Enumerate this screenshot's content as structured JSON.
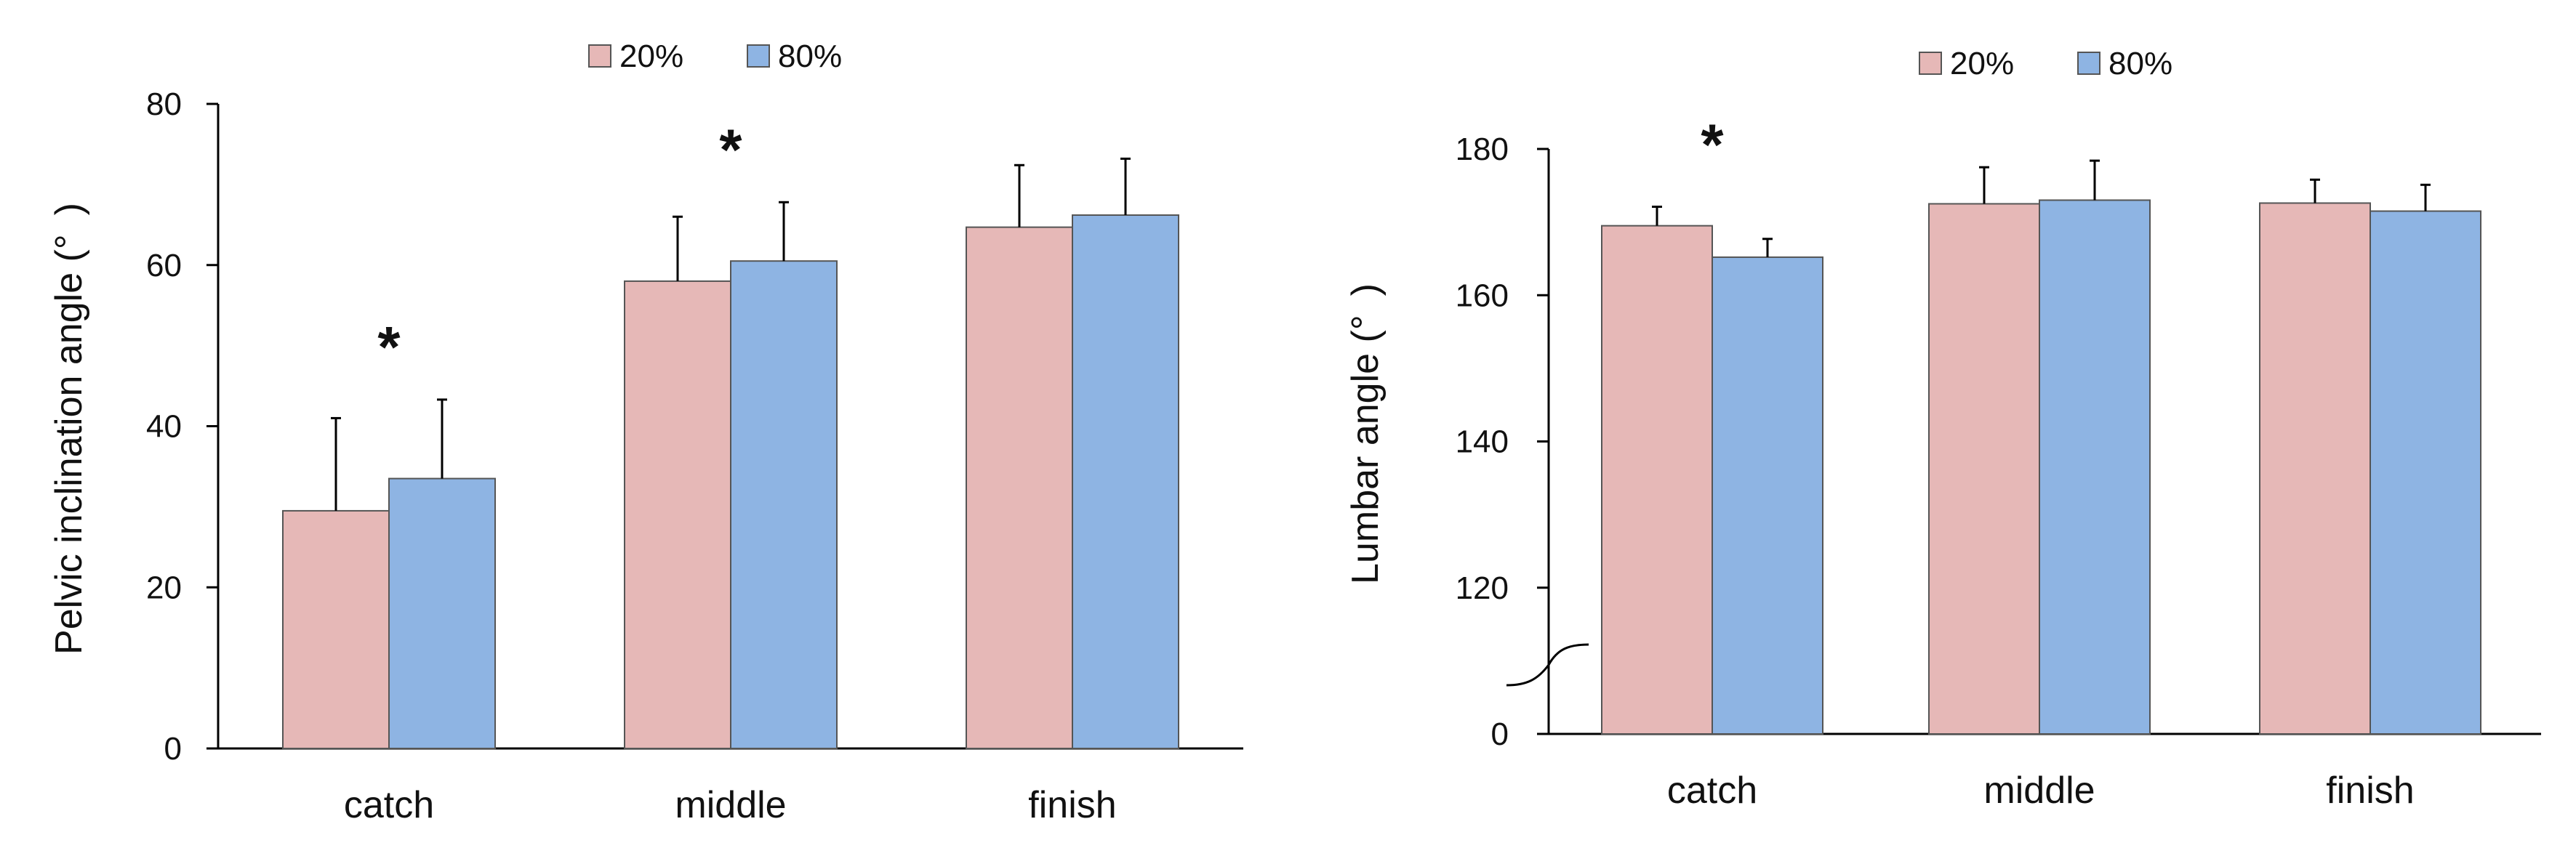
{
  "chart_data": [
    {
      "type": "bar",
      "categories": [
        "catch",
        "middle",
        "finish"
      ],
      "ylabel": "Pelvic inclination angle (° )",
      "ylim": [
        0,
        80
      ],
      "yticks": [
        "0",
        "20",
        "40",
        "60",
        "80"
      ],
      "grid": false,
      "legend": "top-center",
      "series": [
        {
          "name": "20%",
          "color": "#e6b8b7",
          "values": [
            29.5,
            58,
            64.7
          ],
          "errors": [
            11.5,
            8,
            7.7
          ]
        },
        {
          "name": "80%",
          "color": "#8eb4e3",
          "values": [
            33.5,
            60.5,
            66.2
          ],
          "errors": [
            9.8,
            7.3,
            7
          ]
        }
      ],
      "significance": [
        {
          "category": "catch",
          "label": "*"
        },
        {
          "category": "middle",
          "label": "*"
        }
      ]
    },
    {
      "type": "bar",
      "categories": [
        "catch",
        "middle",
        "finish"
      ],
      "ylabel": "Lumbar angle (° )",
      "ylim": [
        100,
        180
      ],
      "axis_break": true,
      "yticks": [
        "0",
        "120",
        "140",
        "160",
        "180"
      ],
      "grid": false,
      "legend": "top-center",
      "series": [
        {
          "name": "20%",
          "color": "#e6b8b7",
          "values": [
            169.5,
            172.5,
            172.6
          ],
          "errors": [
            2.6,
            5,
            3.2
          ]
        },
        {
          "name": "80%",
          "color": "#8eb4e3",
          "values": [
            165.2,
            173,
            171.5
          ],
          "errors": [
            2.5,
            5.4,
            3.6
          ]
        }
      ],
      "significance": [
        {
          "category": "catch",
          "label": "*"
        }
      ]
    }
  ]
}
